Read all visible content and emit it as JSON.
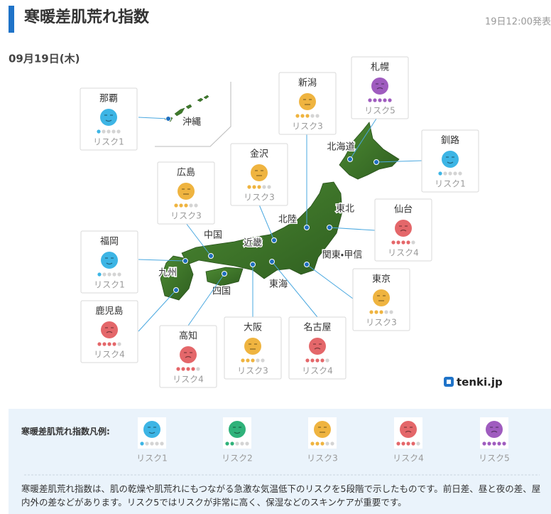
{
  "header": {
    "title": "寒暖差肌荒れ指数",
    "published": "19日12:00発表",
    "date": "09月19日(木)"
  },
  "map": {
    "regions": [
      {
        "name": "沖縄"
      },
      {
        "name": "北海道"
      },
      {
        "name": "東北"
      },
      {
        "name": "北陸"
      },
      {
        "name": "関東・甲信"
      },
      {
        "name": "東海"
      },
      {
        "name": "近畿"
      },
      {
        "name": "中国"
      },
      {
        "name": "四国"
      },
      {
        "name": "九州"
      }
    ],
    "cities": [
      {
        "name": "那覇",
        "level": 1,
        "label": "リスク1"
      },
      {
        "name": "札幌",
        "level": 5,
        "label": "リスク5"
      },
      {
        "name": "新潟",
        "level": 3,
        "label": "リスク3"
      },
      {
        "name": "釧路",
        "level": 1,
        "label": "リスク1"
      },
      {
        "name": "金沢",
        "level": 3,
        "label": "リスク3"
      },
      {
        "name": "広島",
        "level": 3,
        "label": "リスク3"
      },
      {
        "name": "仙台",
        "level": 4,
        "label": "リスク4"
      },
      {
        "name": "福岡",
        "level": 1,
        "label": "リスク1"
      },
      {
        "name": "東京",
        "level": 3,
        "label": "リスク3"
      },
      {
        "name": "鹿児島",
        "level": 4,
        "label": "リスク4"
      },
      {
        "name": "高知",
        "level": 4,
        "label": "リスク4"
      },
      {
        "name": "大阪",
        "level": 3,
        "label": "リスク3"
      },
      {
        "name": "名古屋",
        "level": 4,
        "label": "リスク4"
      }
    ]
  },
  "logo": "tenki.jp",
  "legend": {
    "title": "寒暖差肌荒れ指数凡例:",
    "items": [
      {
        "level": 1,
        "label": "リスク1",
        "color": "#3db5e5"
      },
      {
        "level": 2,
        "label": "リスク2",
        "color": "#2fb27a"
      },
      {
        "level": 3,
        "label": "リスク3",
        "color": "#efb440"
      },
      {
        "level": 4,
        "label": "リスク4",
        "color": "#e4676a"
      },
      {
        "level": 5,
        "label": "リスク5",
        "color": "#9f5cbf"
      }
    ]
  },
  "description": "寒暖差肌荒れ指数は、肌の乾燥や肌荒れにもつながる急激な気温低下のリスクを5段階で示したものです。前日差、昼と夜の差、屋内外の差などがあります。リスク5ではリスクが非常に高く、保湿などのスキンケアが重要です。"
}
